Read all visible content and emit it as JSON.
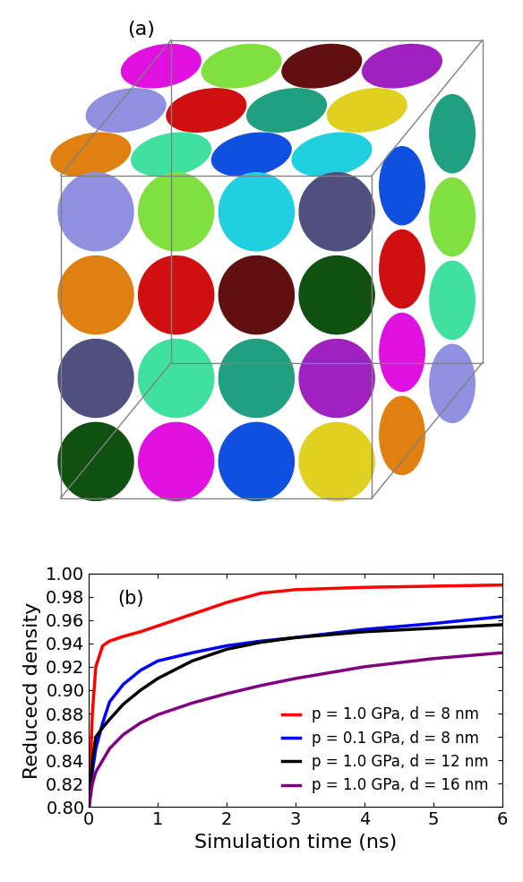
{
  "image_panel": {
    "panel_label": "(a)"
  },
  "chart_data": {
    "type": "line",
    "panel_label": "(b)",
    "xlabel": "Simulation time (ns)",
    "ylabel": "Reducecd density",
    "x": [
      0,
      0.05,
      0.1,
      0.2,
      0.3,
      0.5,
      0.75,
      1,
      1.5,
      2,
      2.5,
      3,
      4,
      5,
      6
    ],
    "series": [
      {
        "name": "p = 1.0 GPa, d = 8 nm",
        "color": "#ff0000",
        "values": [
          0.8,
          0.88,
          0.92,
          0.938,
          0.942,
          0.946,
          0.95,
          0.955,
          0.965,
          0.975,
          0.983,
          0.986,
          0.988,
          0.989,
          0.99
        ]
      },
      {
        "name": "p = 0.1 GPa, d = 8 nm",
        "color": "#0000ff",
        "values": [
          0.8,
          0.83,
          0.85,
          0.872,
          0.89,
          0.905,
          0.917,
          0.925,
          0.932,
          0.938,
          0.942,
          0.945,
          0.952,
          0.957,
          0.963
        ]
      },
      {
        "name": "p = 1.0 GPa, d = 12 nm",
        "color": "#000000",
        "values": [
          0.8,
          0.84,
          0.86,
          0.868,
          0.875,
          0.888,
          0.9,
          0.91,
          0.925,
          0.935,
          0.941,
          0.945,
          0.95,
          0.953,
          0.956
        ]
      },
      {
        "name": "p = 1.0 GPa, d = 16 nm",
        "color": "#800080",
        "values": [
          0.8,
          0.82,
          0.83,
          0.84,
          0.85,
          0.862,
          0.872,
          0.879,
          0.889,
          0.897,
          0.904,
          0.91,
          0.92,
          0.927,
          0.932
        ]
      }
    ],
    "xlim": [
      0,
      6
    ],
    "xticks": [
      0,
      1,
      2,
      3,
      4,
      5,
      6
    ],
    "ylim": [
      0.8,
      1.0
    ],
    "yticks": [
      {
        "value": 0.8,
        "label": "0.80"
      },
      {
        "value": 0.82,
        "label": "0.82"
      },
      {
        "value": 0.84,
        "label": "0.84"
      },
      {
        "value": 0.86,
        "label": "0.86"
      },
      {
        "value": 0.88,
        "label": "0.88"
      },
      {
        "value": 0.9,
        "label": "0.90"
      },
      {
        "value": 0.92,
        "label": "0.92"
      },
      {
        "value": 0.94,
        "label": "0.94"
      },
      {
        "value": 0.96,
        "label": "0.96"
      },
      {
        "value": 0.98,
        "label": "0.98"
      },
      {
        "value": 1.0,
        "label": "1.00"
      }
    ],
    "legend": "lower right",
    "grid": false
  }
}
